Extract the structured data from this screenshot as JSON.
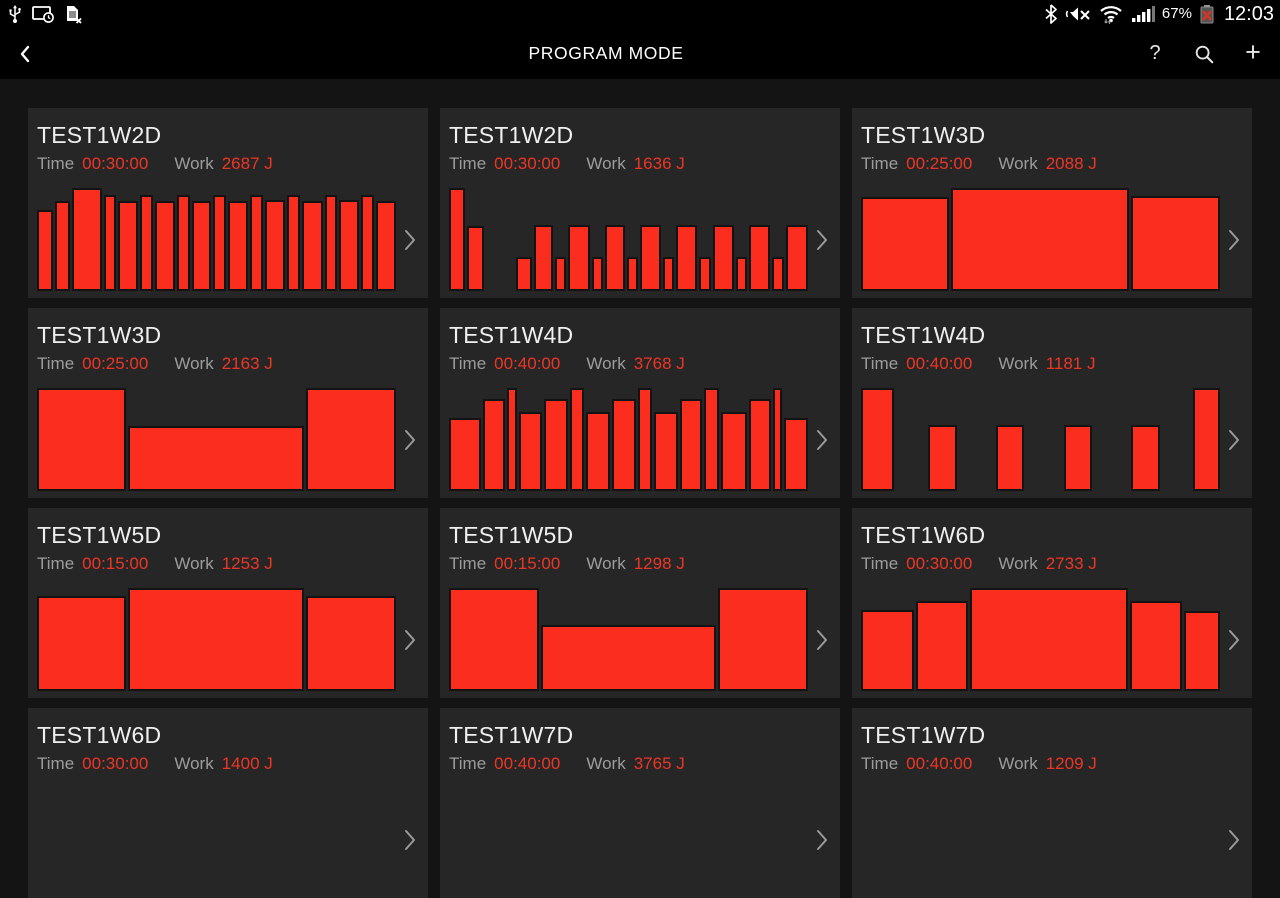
{
  "status_bar": {
    "left_icons": [
      "usb-icon",
      "screen-timeout-icon",
      "no-sim-icon"
    ],
    "right_icons": [
      "bluetooth-icon",
      "mute-vibrate-icon",
      "wifi-icon",
      "signal-strength-icon",
      "battery-error-icon"
    ],
    "battery_percent": "67%",
    "clock": "12:03"
  },
  "action_bar": {
    "title": "PROGRAM MODE",
    "back_icon": "back-chevron-icon",
    "help_label": "?",
    "search_icon": "search-icon",
    "add_label": "+"
  },
  "labels": {
    "time": "Time",
    "work": "Work"
  },
  "colors": {
    "page_bg": "#141414",
    "card_bg": "#262626",
    "bar_fill": "#fb2d1f",
    "value_text": "#ee3524",
    "label_text": "#9c9c9c",
    "title_text": "#f0f0f0"
  },
  "cards": [
    {
      "title": "TEST1W2D",
      "time": "00:30:00",
      "work": "2687 J",
      "bars": [
        {
          "w": 16,
          "h": 79
        },
        {
          "w": 15,
          "h": 87
        },
        {
          "w": 35,
          "h": 100
        },
        {
          "w": 11,
          "h": 93
        },
        {
          "w": 22,
          "h": 87
        },
        {
          "w": 12,
          "h": 93
        },
        {
          "w": 22,
          "h": 87
        },
        {
          "w": 12,
          "h": 93
        },
        {
          "w": 21,
          "h": 87
        },
        {
          "w": 12,
          "h": 93
        },
        {
          "w": 22,
          "h": 87
        },
        {
          "w": 11,
          "h": 93
        },
        {
          "w": 22,
          "h": 88
        },
        {
          "w": 13,
          "h": 93
        },
        {
          "w": 22,
          "h": 87
        },
        {
          "w": 11,
          "h": 93
        },
        {
          "w": 22,
          "h": 88
        },
        {
          "w": 12,
          "h": 93
        },
        {
          "w": 22,
          "h": 87
        }
      ]
    },
    {
      "title": "TEST1W2D",
      "time": "00:30:00",
      "work": "1636 J",
      "bars": [
        {
          "w": 17,
          "h": 100
        },
        {
          "w": 18,
          "h": 63
        },
        {
          "w": 40,
          "h": 0
        },
        {
          "w": 16,
          "h": 33
        },
        {
          "w": 22,
          "h": 64
        },
        {
          "w": 10,
          "h": 33
        },
        {
          "w": 24,
          "h": 64
        },
        {
          "w": 10,
          "h": 33
        },
        {
          "w": 23,
          "h": 64
        },
        {
          "w": 10,
          "h": 33
        },
        {
          "w": 24,
          "h": 64
        },
        {
          "w": 10,
          "h": 33
        },
        {
          "w": 24,
          "h": 64
        },
        {
          "w": 11,
          "h": 33
        },
        {
          "w": 23,
          "h": 64
        },
        {
          "w": 10,
          "h": 33
        },
        {
          "w": 24,
          "h": 64
        },
        {
          "w": 11,
          "h": 33
        },
        {
          "w": 26,
          "h": 64
        }
      ]
    },
    {
      "title": "TEST1W3D",
      "time": "00:25:00",
      "work": "2088 J",
      "bars": [
        {
          "w": 88,
          "h": 91
        },
        {
          "w": 182,
          "h": 100
        },
        {
          "w": 89,
          "h": 92
        }
      ]
    },
    {
      "title": "TEST1W3D",
      "time": "00:25:00",
      "work": "2163 J",
      "bars": [
        {
          "w": 90,
          "h": 100
        },
        {
          "w": 184,
          "h": 63
        },
        {
          "w": 91,
          "h": 100
        }
      ]
    },
    {
      "title": "TEST1W4D",
      "time": "00:40:00",
      "work": "3768 J",
      "bars": [
        {
          "w": 38,
          "h": 71
        },
        {
          "w": 25,
          "h": 89
        },
        {
          "w": 7,
          "h": 100
        },
        {
          "w": 27,
          "h": 77
        },
        {
          "w": 26,
          "h": 89
        },
        {
          "w": 14,
          "h": 100
        },
        {
          "w": 27,
          "h": 77
        },
        {
          "w": 27,
          "h": 89
        },
        {
          "w": 14,
          "h": 100
        },
        {
          "w": 27,
          "h": 77
        },
        {
          "w": 25,
          "h": 89
        },
        {
          "w": 14,
          "h": 100
        },
        {
          "w": 30,
          "h": 77
        },
        {
          "w": 25,
          "h": 89
        },
        {
          "w": 7,
          "h": 100
        },
        {
          "w": 27,
          "h": 71
        }
      ]
    },
    {
      "title": "TEST1W4D",
      "time": "00:40:00",
      "work": "1181 J",
      "bars": [
        {
          "w": 34,
          "h": 100
        },
        {
          "w": 34,
          "h": 0
        },
        {
          "w": 29,
          "h": 64
        },
        {
          "w": 41,
          "h": 0
        },
        {
          "w": 28,
          "h": 64
        },
        {
          "w": 41,
          "h": 0
        },
        {
          "w": 28,
          "h": 64
        },
        {
          "w": 41,
          "h": 0
        },
        {
          "w": 29,
          "h": 64
        },
        {
          "w": 33,
          "h": 0
        },
        {
          "w": 27,
          "h": 100
        }
      ]
    },
    {
      "title": "TEST1W5D",
      "time": "00:15:00",
      "work": "1253 J",
      "bars": [
        {
          "w": 89,
          "h": 92
        },
        {
          "w": 181,
          "h": 100
        },
        {
          "w": 90,
          "h": 92
        }
      ]
    },
    {
      "title": "TEST1W5D",
      "time": "00:15:00",
      "work": "1298 J",
      "bars": [
        {
          "w": 97,
          "h": 100
        },
        {
          "w": 194,
          "h": 64
        },
        {
          "w": 98,
          "h": 100
        }
      ]
    },
    {
      "title": "TEST1W6D",
      "time": "00:30:00",
      "work": "2733 J",
      "bars": [
        {
          "w": 52,
          "h": 79
        },
        {
          "w": 52,
          "h": 87
        },
        {
          "w": 164,
          "h": 100
        },
        {
          "w": 52,
          "h": 87
        },
        {
          "w": 34,
          "h": 78
        }
      ]
    },
    {
      "title": "TEST1W6D",
      "time": "00:30:00",
      "work": "1400 J",
      "bars": []
    },
    {
      "title": "TEST1W7D",
      "time": "00:40:00",
      "work": "3765 J",
      "bars": []
    },
    {
      "title": "TEST1W7D",
      "time": "00:40:00",
      "work": "1209 J",
      "bars": []
    }
  ]
}
